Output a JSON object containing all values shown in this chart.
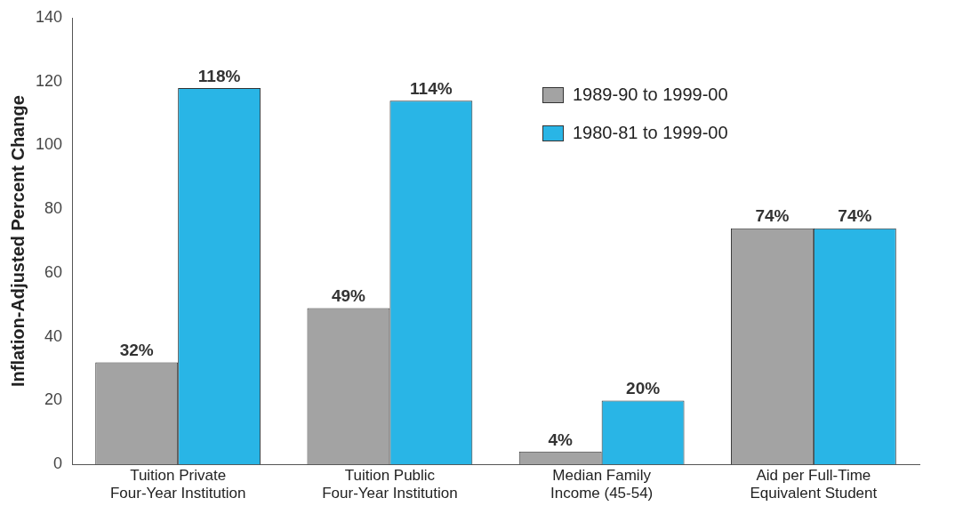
{
  "chart_data": {
    "type": "bar",
    "ylabel": "Inflation-Adjusted Percent Change",
    "categories": [
      "Tuition Private\nFour-Year Institution",
      "Tuition Public\nFour-Year Institution",
      "Median Family\nIncome (45-54)",
      "Aid per Full-Time\nEquivalent Student"
    ],
    "series": [
      {
        "name": "1989-90 to 1999-00",
        "color": "#a3a3a3",
        "values": [
          32,
          49,
          4,
          74
        ],
        "value_labels": [
          "32%",
          "49%",
          "4%",
          "74%"
        ]
      },
      {
        "name": "1980-81 to 1999-00",
        "color": "#29b5e6",
        "values": [
          118,
          114,
          20,
          74
        ],
        "value_labels": [
          "118%",
          "114%",
          "20%",
          "74%"
        ]
      }
    ],
    "ylim": [
      0,
      140
    ],
    "yticks": [
      0,
      20,
      40,
      60,
      80,
      100,
      120,
      140
    ],
    "grid": false,
    "legend": "top right"
  }
}
